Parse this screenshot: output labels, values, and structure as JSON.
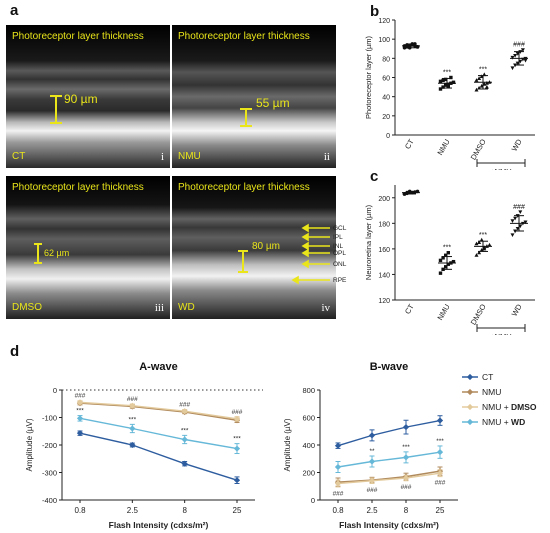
{
  "panel_a": {
    "letter": "a",
    "images": [
      {
        "title": "Photoreceptor layer thickness",
        "group": "CT",
        "numeral": "i",
        "measurement": "90 µm"
      },
      {
        "title": "Photoreceptor layer thickness",
        "group": "NMU",
        "numeral": "ii",
        "measurement": "55 µm"
      },
      {
        "title": "Photoreceptor layer thickness",
        "group": "DMSO",
        "numeral": "iii",
        "measurement": "62 µm"
      },
      {
        "title": "Photoreceptor layer thickness",
        "group": "WD",
        "numeral": "iv",
        "measurement": "80 µm"
      }
    ],
    "layer_labels": [
      "GCL",
      "IPL",
      "INL",
      "OPL",
      "ONL",
      "RPE"
    ]
  },
  "panel_d_letter": "d",
  "chart_data": [
    {
      "id": "b",
      "type": "scatter",
      "letter": "b",
      "ylabel": "Photoreceptor layer (µm)",
      "ylim": [
        0,
        120
      ],
      "yticks": [
        0,
        20,
        40,
        60,
        80,
        100,
        120
      ],
      "categories": [
        "CT",
        "NMU",
        "DMSO",
        "WD"
      ],
      "bracket_label": "+NMU",
      "annotations": [
        "",
        "***",
        "***",
        "###"
      ],
      "series": [
        {
          "category": "CT",
          "mean": 93,
          "sd": 2,
          "shape": "circle",
          "values": [
            91,
            92,
            93,
            94,
            95,
            92,
            93,
            94,
            91,
            95,
            93,
            92
          ]
        },
        {
          "category": "NMU",
          "mean": 54,
          "sd": 5,
          "shape": "square",
          "values": [
            48,
            50,
            52,
            53,
            54,
            55,
            56,
            57,
            58,
            51,
            60
          ]
        },
        {
          "category": "DMSO",
          "mean": 55,
          "sd": 7,
          "shape": "triangle",
          "values": [
            47,
            49,
            51,
            53,
            54,
            55,
            57,
            59,
            61,
            63,
            50
          ]
        },
        {
          "category": "WD",
          "mean": 80,
          "sd": 7,
          "shape": "triangle-down",
          "values": [
            70,
            73,
            75,
            77,
            79,
            80,
            81,
            83,
            85,
            87,
            89,
            78
          ]
        }
      ]
    },
    {
      "id": "c",
      "type": "scatter",
      "letter": "c",
      "ylabel": "Neuroretina layer (µm)",
      "ylim": [
        120,
        210
      ],
      "yticks": [
        120,
        140,
        160,
        180,
        200
      ],
      "categories": [
        "CT",
        "NMU",
        "DMSO",
        "WD"
      ],
      "bracket_label": "+NMU",
      "annotations": [
        "",
        "***",
        "***",
        "###"
      ],
      "series": [
        {
          "category": "CT",
          "mean": 204,
          "sd": 1,
          "shape": "circle",
          "values": [
            203,
            203.5,
            204,
            204,
            204.5,
            205,
            203,
            204,
            205,
            204
          ]
        },
        {
          "category": "NMU",
          "mean": 149,
          "sd": 5,
          "shape": "square",
          "values": [
            141,
            144,
            146,
            148,
            149,
            150,
            151,
            153,
            155,
            157
          ]
        },
        {
          "category": "DMSO",
          "mean": 162,
          "sd": 4,
          "shape": "triangle",
          "values": [
            155,
            157,
            159,
            161,
            162,
            163,
            164,
            165,
            167,
            160
          ]
        },
        {
          "category": "WD",
          "mean": 180,
          "sd": 6,
          "shape": "triangle-down",
          "values": [
            171,
            174,
            176,
            178,
            180,
            181,
            182,
            184,
            186,
            189
          ]
        }
      ]
    },
    {
      "id": "d1",
      "type": "line",
      "title": "A-wave",
      "xlabel": "Flash Intensity (cdxs/m²)",
      "ylabel": "Amplitude (µV)",
      "categories": [
        "0.8",
        "2.5",
        "8",
        "25"
      ],
      "ylim": [
        -400,
        0
      ],
      "yticks": [
        -400,
        -300,
        -200,
        -100,
        0
      ],
      "zero_line": "dotted",
      "series": [
        {
          "name": "CT",
          "color": "#2e5d9f",
          "values": [
            -157,
            -200,
            -268,
            -328
          ],
          "err": [
            8,
            7,
            8,
            12
          ]
        },
        {
          "name": "NMU",
          "color": "#b08a5c",
          "values": [
            -48,
            -60,
            -80,
            -110
          ],
          "err": [
            6,
            6,
            6,
            8
          ]
        },
        {
          "name": "NMU + DMSO",
          "color": "#e3ca9d",
          "values": [
            -45,
            -57,
            -77,
            -105
          ],
          "err": [
            6,
            6,
            6,
            8
          ]
        },
        {
          "name": "NMU + WD",
          "color": "#66b8d8",
          "values": [
            -103,
            -140,
            -180,
            -213
          ],
          "err": [
            10,
            15,
            15,
            18
          ]
        }
      ],
      "annotations": [
        {
          "x": "0.8",
          "text": "###",
          "row": 0
        },
        {
          "x": "0.8",
          "text": "***",
          "row": 1
        },
        {
          "x": "2.5",
          "text": "###",
          "row": 0
        },
        {
          "x": "2.5",
          "text": "***",
          "row": 1
        },
        {
          "x": "8",
          "text": "###",
          "row": 0
        },
        {
          "x": "8",
          "text": "***",
          "row": 1
        },
        {
          "x": "25",
          "text": "###",
          "row": 0
        },
        {
          "x": "25",
          "text": "***",
          "row": 1
        }
      ]
    },
    {
      "id": "d2",
      "type": "line",
      "title": "B-wave",
      "xlabel": "Flash Intensity (cdxs/m²)",
      "ylabel": "Amplitude (µV)",
      "categories": [
        "0.8",
        "2.5",
        "8",
        "25"
      ],
      "ylim": [
        0,
        800
      ],
      "yticks": [
        0,
        200,
        400,
        600,
        800
      ],
      "legend": [
        {
          "name": "CT",
          "prefix": "CT",
          "suffix": ""
        },
        {
          "name": "NMU",
          "prefix": "NMU",
          "suffix": ""
        },
        {
          "name": "NMU + DMSO",
          "prefix": "NMU + ",
          "suffix": "DMSO"
        },
        {
          "name": "NMU + WD",
          "prefix": "NMU + ",
          "suffix": "WD"
        }
      ],
      "legend_position": "top-right",
      "series": [
        {
          "name": "CT",
          "color": "#2e5d9f",
          "values": [
            395,
            470,
            530,
            578
          ],
          "err": [
            20,
            40,
            50,
            35
          ]
        },
        {
          "name": "NMU",
          "color": "#b08a5c",
          "values": [
            130,
            145,
            170,
            210
          ],
          "err": [
            30,
            20,
            25,
            30
          ]
        },
        {
          "name": "NMU + DMSO",
          "color": "#e3ca9d",
          "values": [
            120,
            140,
            160,
            195
          ],
          "err": [
            25,
            20,
            20,
            25
          ]
        },
        {
          "name": "NMU + WD",
          "color": "#66b8d8",
          "values": [
            240,
            280,
            310,
            348
          ],
          "err": [
            40,
            40,
            40,
            45
          ]
        }
      ],
      "annotations": [
        {
          "x": "2.5",
          "text": "**",
          "row": 1
        },
        {
          "x": "8",
          "text": "***",
          "row": 1
        },
        {
          "x": "25",
          "text": "***",
          "row": 1
        },
        {
          "x": "0.8",
          "text": "###",
          "row": 2
        },
        {
          "x": "2.5",
          "text": "###",
          "row": 2
        },
        {
          "x": "8",
          "text": "###",
          "row": 2
        },
        {
          "x": "25",
          "text": "###",
          "row": 2
        }
      ]
    }
  ]
}
